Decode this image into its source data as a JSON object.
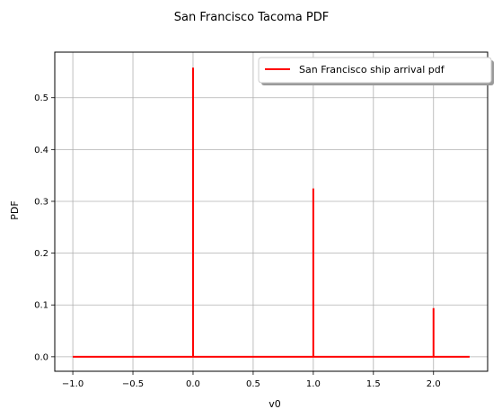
{
  "chart_data": {
    "type": "line",
    "title": "San Francisco Tacoma PDF",
    "xlabel": "v0",
    "ylabel": "PDF",
    "xlim": [
      -1.15,
      2.45
    ],
    "ylim": [
      -0.028,
      0.588
    ],
    "xticks": [
      -1.0,
      -0.5,
      0.0,
      0.5,
      1.0,
      1.5,
      2.0
    ],
    "xtick_labels": [
      "−1.0",
      "−0.5",
      "0.0",
      "0.5",
      "1.0",
      "1.5",
      "2.0"
    ],
    "yticks": [
      0.0,
      0.1,
      0.2,
      0.3,
      0.4,
      0.5
    ],
    "ytick_labels": [
      "0.0",
      "0.1",
      "0.2",
      "0.3",
      "0.4",
      "0.5"
    ],
    "grid": true,
    "legend_position": "top-right",
    "series": [
      {
        "name": "San Francisco ship arrival pdf",
        "color": "#ff0000",
        "x": [
          -1.0,
          0.0,
          0.0,
          0.0,
          1.0,
          1.0,
          1.0,
          2.0,
          2.0,
          2.0,
          2.3
        ],
        "y": [
          0.0,
          0.0,
          0.558,
          0.0,
          0.0,
          0.325,
          0.0,
          0.0,
          0.094,
          0.0,
          0.0
        ]
      }
    ]
  }
}
